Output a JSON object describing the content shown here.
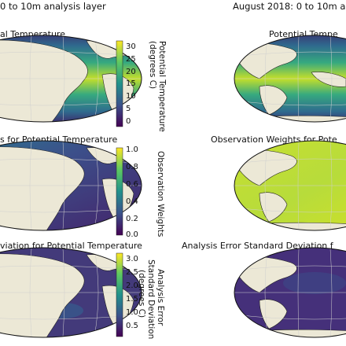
{
  "header": {
    "left_title": "0 to 10m analysis layer",
    "right_title": "August 2018: 0 to 10m a"
  },
  "chart_data": [
    {
      "type": "heatmap",
      "title": "al Temperature",
      "right_title": "Potential Tempe",
      "colorbar": {
        "label": "Potential Temperature (degrees C)",
        "ticks": [
          "30",
          "25",
          "20",
          "15",
          "10",
          "5",
          "0"
        ],
        "range": [
          -2,
          32
        ]
      }
    },
    {
      "type": "heatmap",
      "title": "s for Potential Temperature",
      "right_title": "Observation Weights for Pote",
      "colorbar": {
        "label": "Observation Weights",
        "ticks": [
          "1.0",
          "0.8",
          "0.6",
          "0.4",
          "0.2",
          "0.0"
        ],
        "range": [
          0,
          1
        ]
      }
    },
    {
      "type": "heatmap",
      "title": "viation for Potential Temperature",
      "right_title": "Analysis Error Standard Deviation f",
      "colorbar": {
        "label_lines": [
          "Analysis Error",
          "Standard Deviation",
          "(degrees C)"
        ],
        "ticks": [
          "3.0",
          "2.5",
          "2.0",
          "1.5",
          "1.0",
          "0.5"
        ],
        "range": [
          0.2,
          3.2
        ]
      }
    }
  ],
  "colors": {
    "land": "#ece8d6",
    "viridis": [
      "#440154",
      "#3b528b",
      "#21918c",
      "#5ec962",
      "#fde725"
    ]
  }
}
